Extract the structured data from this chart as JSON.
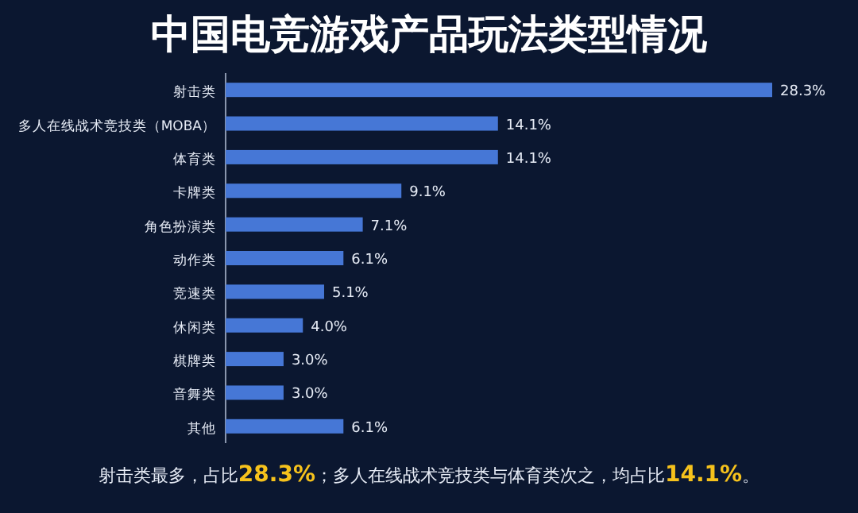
{
  "chart_data": {
    "type": "bar",
    "orientation": "horizontal",
    "title": "中国电竞游戏产品玩法类型情况",
    "categories": [
      "射击类",
      "多人在线战术竞技类（MOBA）",
      "体育类",
      "卡牌类",
      "角色扮演类",
      "动作类",
      "竞速类",
      "休闲类",
      "棋牌类",
      "音舞类",
      "其他"
    ],
    "values": [
      28.3,
      14.1,
      14.1,
      9.1,
      7.1,
      6.1,
      5.1,
      4.0,
      3.0,
      3.0,
      6.1
    ],
    "value_labels": [
      "28.3%",
      "14.1%",
      "14.1%",
      "9.1%",
      "7.1%",
      "6.1%",
      "5.1%",
      "4.0%",
      "3.0%",
      "3.0%",
      "6.1%"
    ],
    "color": "#4677d6",
    "annotations": [
      "射击类最多，占比**28.3%**；多人在线战术竞技类与体育类次之，均占比**14.1%**。"
    ]
  }
}
